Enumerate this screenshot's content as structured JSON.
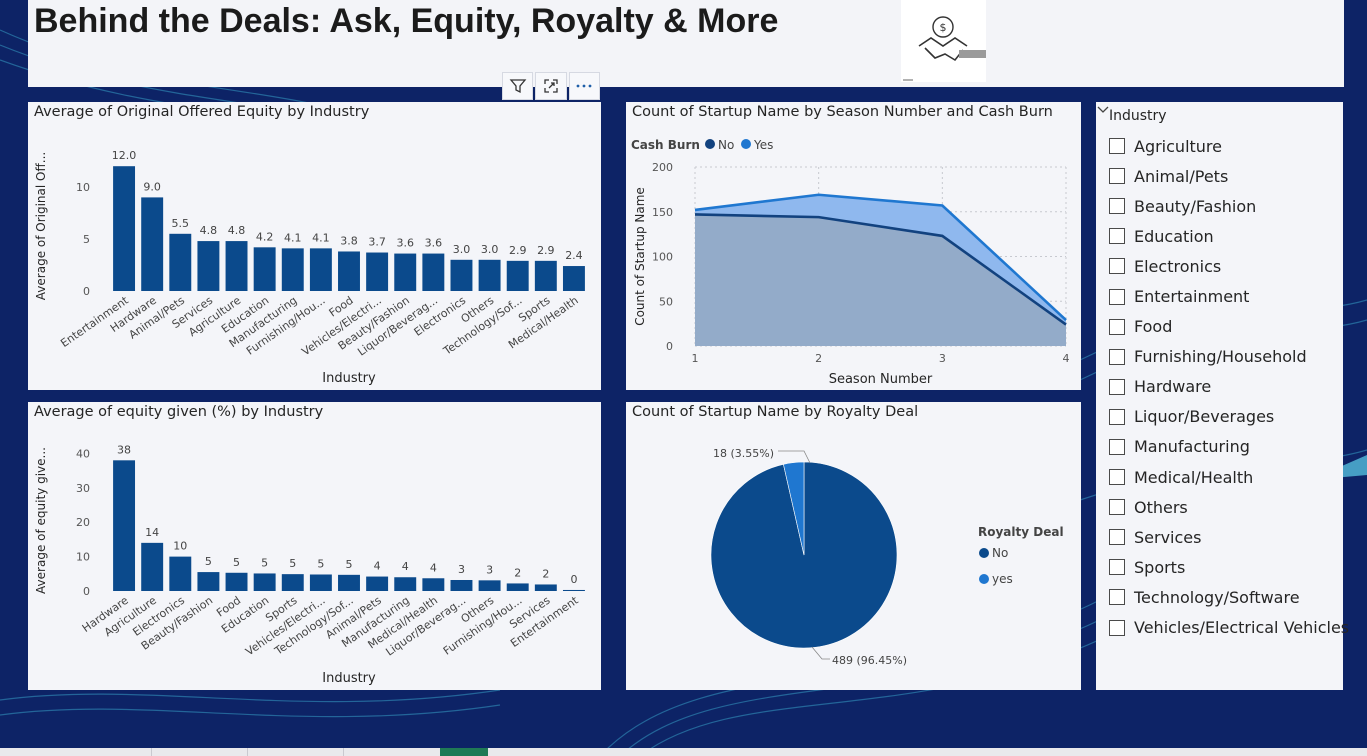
{
  "page": {
    "title": "Behind the Deals: Ask, Equity, Royalty & More",
    "colors": {
      "background": "#0d2366",
      "bar": "#0b4a8c",
      "series_no": "#12427f",
      "series_yes": "#1f77d0",
      "panel": "#f4f5f9"
    }
  },
  "logo": {
    "icon": "handshake-dollar-icon"
  },
  "toolbar": {
    "icons": [
      "filter-icon",
      "focus-mode-icon",
      "more-options-icon"
    ]
  },
  "charts": {
    "equity_offered": {
      "title": "Average of Original Offered Equity by Industry",
      "chart_data": {
        "type": "bar",
        "title": "Average of Original Offered Equity by Industry",
        "xlabel": "Industry",
        "ylabel": "Average of Original Off...",
        "categories": [
          "Entertainment",
          "Hardware",
          "Animal/Pets",
          "Services",
          "Agriculture",
          "Education",
          "Manufacturing",
          "Furnishing/Hou...",
          "Food",
          "Vehicles/Electri...",
          "Beauty/Fashion",
          "Liquor/Beverag...",
          "Electronics",
          "Others",
          "Technology/Sof...",
          "Sports",
          "Medical/Health"
        ],
        "values": [
          12.0,
          9.0,
          5.5,
          4.8,
          4.8,
          4.2,
          4.1,
          4.1,
          3.8,
          3.7,
          3.6,
          3.6,
          3.0,
          3.0,
          2.9,
          2.9,
          2.4
        ],
        "labels": [
          "12.0",
          "9.0",
          "5.5",
          "4.8",
          "4.8",
          "4.2",
          "4.1",
          "4.1",
          "3.8",
          "3.7",
          "3.6",
          "3.6",
          "3.0",
          "3.0",
          "2.9",
          "2.9",
          "2.4"
        ],
        "yticks": [
          "0",
          "5",
          "10"
        ],
        "ylim": [
          0,
          12.5
        ],
        "grid": false
      }
    },
    "equity_given": {
      "title": "Average of equity given (%) by Industry",
      "chart_data": {
        "type": "bar",
        "title": "Average of equity given (%) by Industry",
        "xlabel": "Industry",
        "ylabel": "Average of equity give...",
        "categories": [
          "Hardware",
          "Agriculture",
          "Electronics",
          "Beauty/Fashion",
          "Food",
          "Education",
          "Sports",
          "Vehicles/Electri...",
          "Technology/Sof...",
          "Animal/Pets",
          "Manufacturing",
          "Medical/Health",
          "Liquor/Beverag...",
          "Others",
          "Furnishing/Hou...",
          "Services",
          "Entertainment"
        ],
        "values": [
          38,
          14,
          10,
          5.5,
          5.3,
          5.1,
          4.9,
          4.8,
          4.7,
          4.2,
          4.0,
          3.7,
          3.2,
          3.1,
          2.2,
          1.9,
          0.3
        ],
        "labels": [
          "38",
          "14",
          "10",
          "5",
          "5",
          "5",
          "5",
          "5",
          "5",
          "4",
          "4",
          "4",
          "3",
          "3",
          "2",
          "2",
          "0"
        ],
        "yticks": [
          "0",
          "10",
          "20",
          "30",
          "40"
        ],
        "ylim": [
          0,
          41
        ],
        "grid": false
      }
    },
    "season_cashburn": {
      "title": "Count of Startup Name by Season Number and Cash Burn",
      "chart_data": {
        "type": "area",
        "title": "Count of Startup Name by Season Number and Cash Burn",
        "xlabel": "Season Number",
        "ylabel": "Count of Startup Name",
        "legend_title": "Cash Burn",
        "legend_position": "top-left",
        "x": [
          1,
          2,
          3,
          4
        ],
        "xticks": [
          "1",
          "2",
          "3",
          "4"
        ],
        "yticks": [
          "0",
          "50",
          "100",
          "150",
          "200"
        ],
        "ylim": [
          0,
          200
        ],
        "series": [
          {
            "name": "No",
            "values": [
              147,
              144,
              123,
              24
            ]
          },
          {
            "name": "Yes",
            "values": [
              152,
              169,
              157,
              29
            ]
          }
        ],
        "grid": true
      }
    },
    "royalty": {
      "title": "Count of Startup Name by Royalty Deal",
      "chart_data": {
        "type": "pie",
        "title": "Count of Startup Name by Royalty Deal",
        "legend_title": "Royalty Deal",
        "legend_position": "right",
        "categories": [
          "No",
          "yes"
        ],
        "values": [
          489,
          18
        ],
        "labels": [
          "489 (96.45%)",
          "18 (3.55%)"
        ]
      }
    }
  },
  "slicer": {
    "title": "Industry",
    "items": [
      "Agriculture",
      "Animal/Pets",
      "Beauty/Fashion",
      "Education",
      "Electronics",
      "Entertainment",
      "Food",
      "Furnishing/Household",
      "Hardware",
      "Liquor/Beverages",
      "Manufacturing",
      "Medical/Health",
      "Others",
      "Services",
      "Sports",
      "Technology/Software",
      "Vehicles/Electrical Vehicles"
    ]
  }
}
